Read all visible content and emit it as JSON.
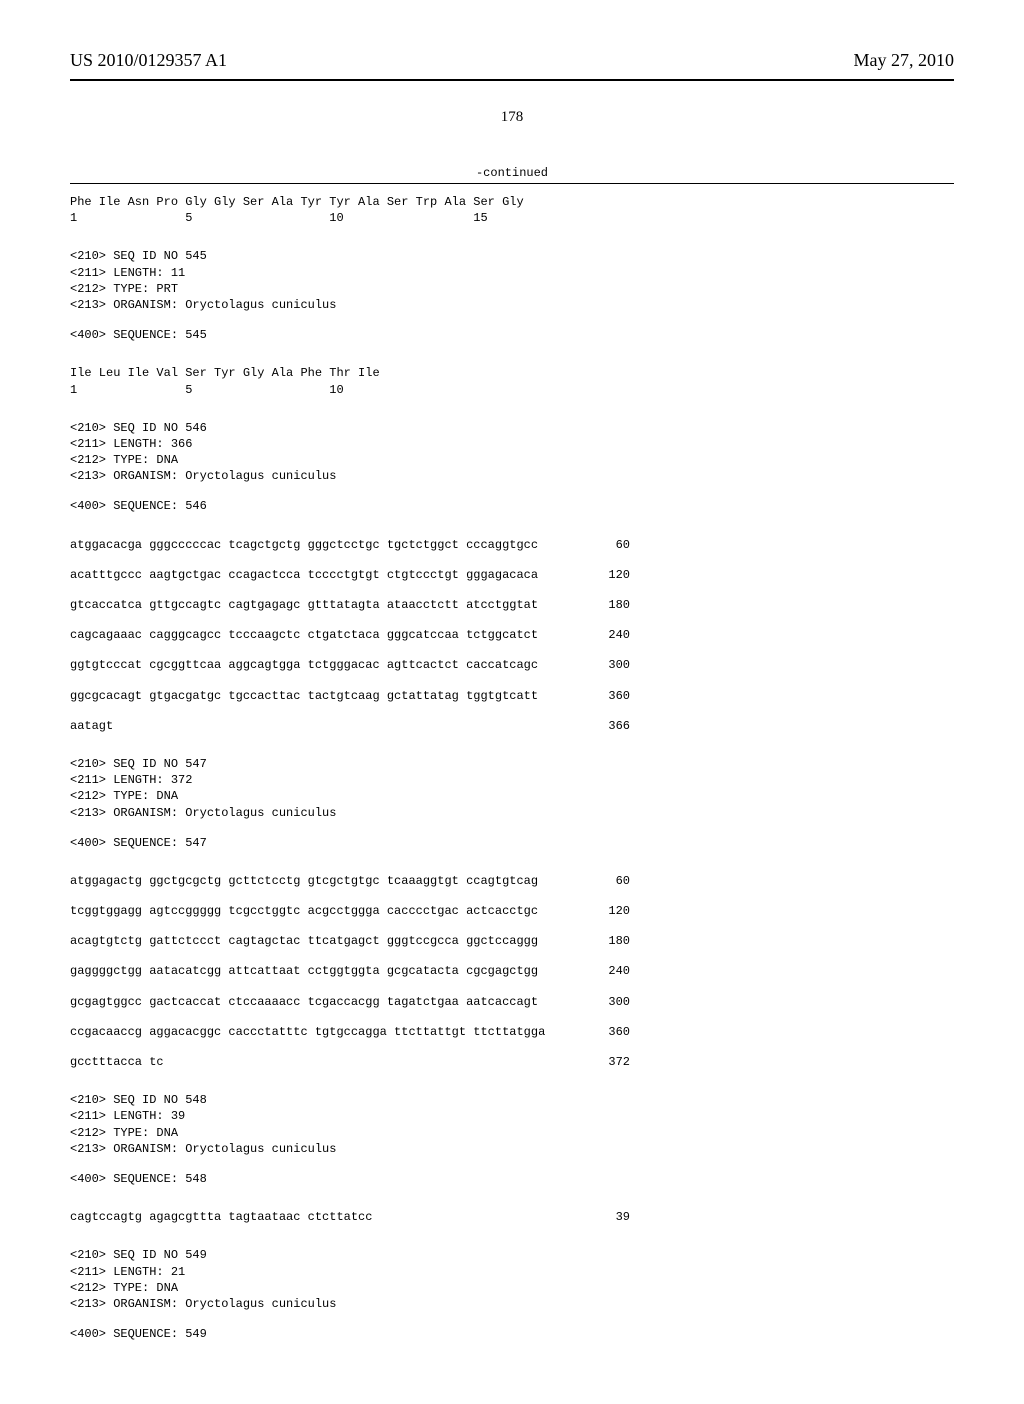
{
  "header": {
    "left": "US 2010/0129357 A1",
    "right": "May 27, 2010"
  },
  "page_number": "178",
  "continued_label": "-continued",
  "blocks": [
    {
      "type": "protein",
      "residues": "Phe Ile Asn Pro Gly Gly Ser Ala Tyr Tyr Ala Ser Trp Ala Ser Gly",
      "numbers": "1               5                   10                  15"
    },
    {
      "type": "header",
      "lines": [
        "<210> SEQ ID NO 545",
        "<211> LENGTH: 11",
        "<212> TYPE: PRT",
        "<213> ORGANISM: Oryctolagus cuniculus",
        "",
        "<400> SEQUENCE: 545"
      ]
    },
    {
      "type": "protein",
      "residues": "Ile Leu Ile Val Ser Tyr Gly Ala Phe Thr Ile",
      "numbers": "1               5                   10"
    },
    {
      "type": "header",
      "lines": [
        "<210> SEQ ID NO 546",
        "<211> LENGTH: 366",
        "<212> TYPE: DNA",
        "<213> ORGANISM: Oryctolagus cuniculus",
        "",
        "<400> SEQUENCE: 546"
      ]
    },
    {
      "type": "dna",
      "rows": [
        {
          "seq": "atggacacga gggcccccac tcagctgctg gggctcctgc tgctctggct cccaggtgcc",
          "n": "60"
        },
        {
          "seq": "acatttgccc aagtgctgac ccagactcca tcccctgtgt ctgtccctgt gggagacaca",
          "n": "120"
        },
        {
          "seq": "gtcaccatca gttgccagtc cagtgagagc gtttatagta ataacctctt atcctggtat",
          "n": "180"
        },
        {
          "seq": "cagcagaaac cagggcagcc tcccaagctc ctgatctaca gggcatccaa tctggcatct",
          "n": "240"
        },
        {
          "seq": "ggtgtcccat cgcggttcaa aggcagtgga tctgggacac agttcactct caccatcagc",
          "n": "300"
        },
        {
          "seq": "ggcgcacagt gtgacgatgc tgccacttac tactgtcaag gctattatag tggtgtcatt",
          "n": "360"
        },
        {
          "seq": "aatagt",
          "n": "366"
        }
      ]
    },
    {
      "type": "header",
      "lines": [
        "<210> SEQ ID NO 547",
        "<211> LENGTH: 372",
        "<212> TYPE: DNA",
        "<213> ORGANISM: Oryctolagus cuniculus",
        "",
        "<400> SEQUENCE: 547"
      ]
    },
    {
      "type": "dna",
      "rows": [
        {
          "seq": "atggagactg ggctgcgctg gcttctcctg gtcgctgtgc tcaaaggtgt ccagtgtcag",
          "n": "60"
        },
        {
          "seq": "tcggtggagg agtccggggg tcgcctggtc acgcctggga cacccctgac actcacctgc",
          "n": "120"
        },
        {
          "seq": "acagtgtctg gattctccct cagtagctac ttcatgagct gggtccgcca ggctccaggg",
          "n": "180"
        },
        {
          "seq": "gaggggctgg aatacatcgg attcattaat cctggtggta gcgcatacta cgcgagctgg",
          "n": "240"
        },
        {
          "seq": "gcgagtggcc gactcaccat ctccaaaacc tcgaccacgg tagatctgaa aatcaccagt",
          "n": "300"
        },
        {
          "seq": "ccgacaaccg aggacacggc caccctatttc tgtgccagga ttcttattgt ttcttatgga",
          "n": "360"
        },
        {
          "seq": "gcctttacca tc",
          "n": "372"
        }
      ]
    },
    {
      "type": "header",
      "lines": [
        "<210> SEQ ID NO 548",
        "<211> LENGTH: 39",
        "<212> TYPE: DNA",
        "<213> ORGANISM: Oryctolagus cuniculus",
        "",
        "<400> SEQUENCE: 548"
      ]
    },
    {
      "type": "dna",
      "rows": [
        {
          "seq": "cagtccagtg agagcgttta tagtaataac ctcttatcc",
          "n": "39"
        }
      ]
    },
    {
      "type": "header",
      "lines": [
        "<210> SEQ ID NO 549",
        "<211> LENGTH: 21",
        "<212> TYPE: DNA",
        "<213> ORGANISM: Oryctolagus cuniculus",
        "",
        "<400> SEQUENCE: 549"
      ]
    }
  ]
}
